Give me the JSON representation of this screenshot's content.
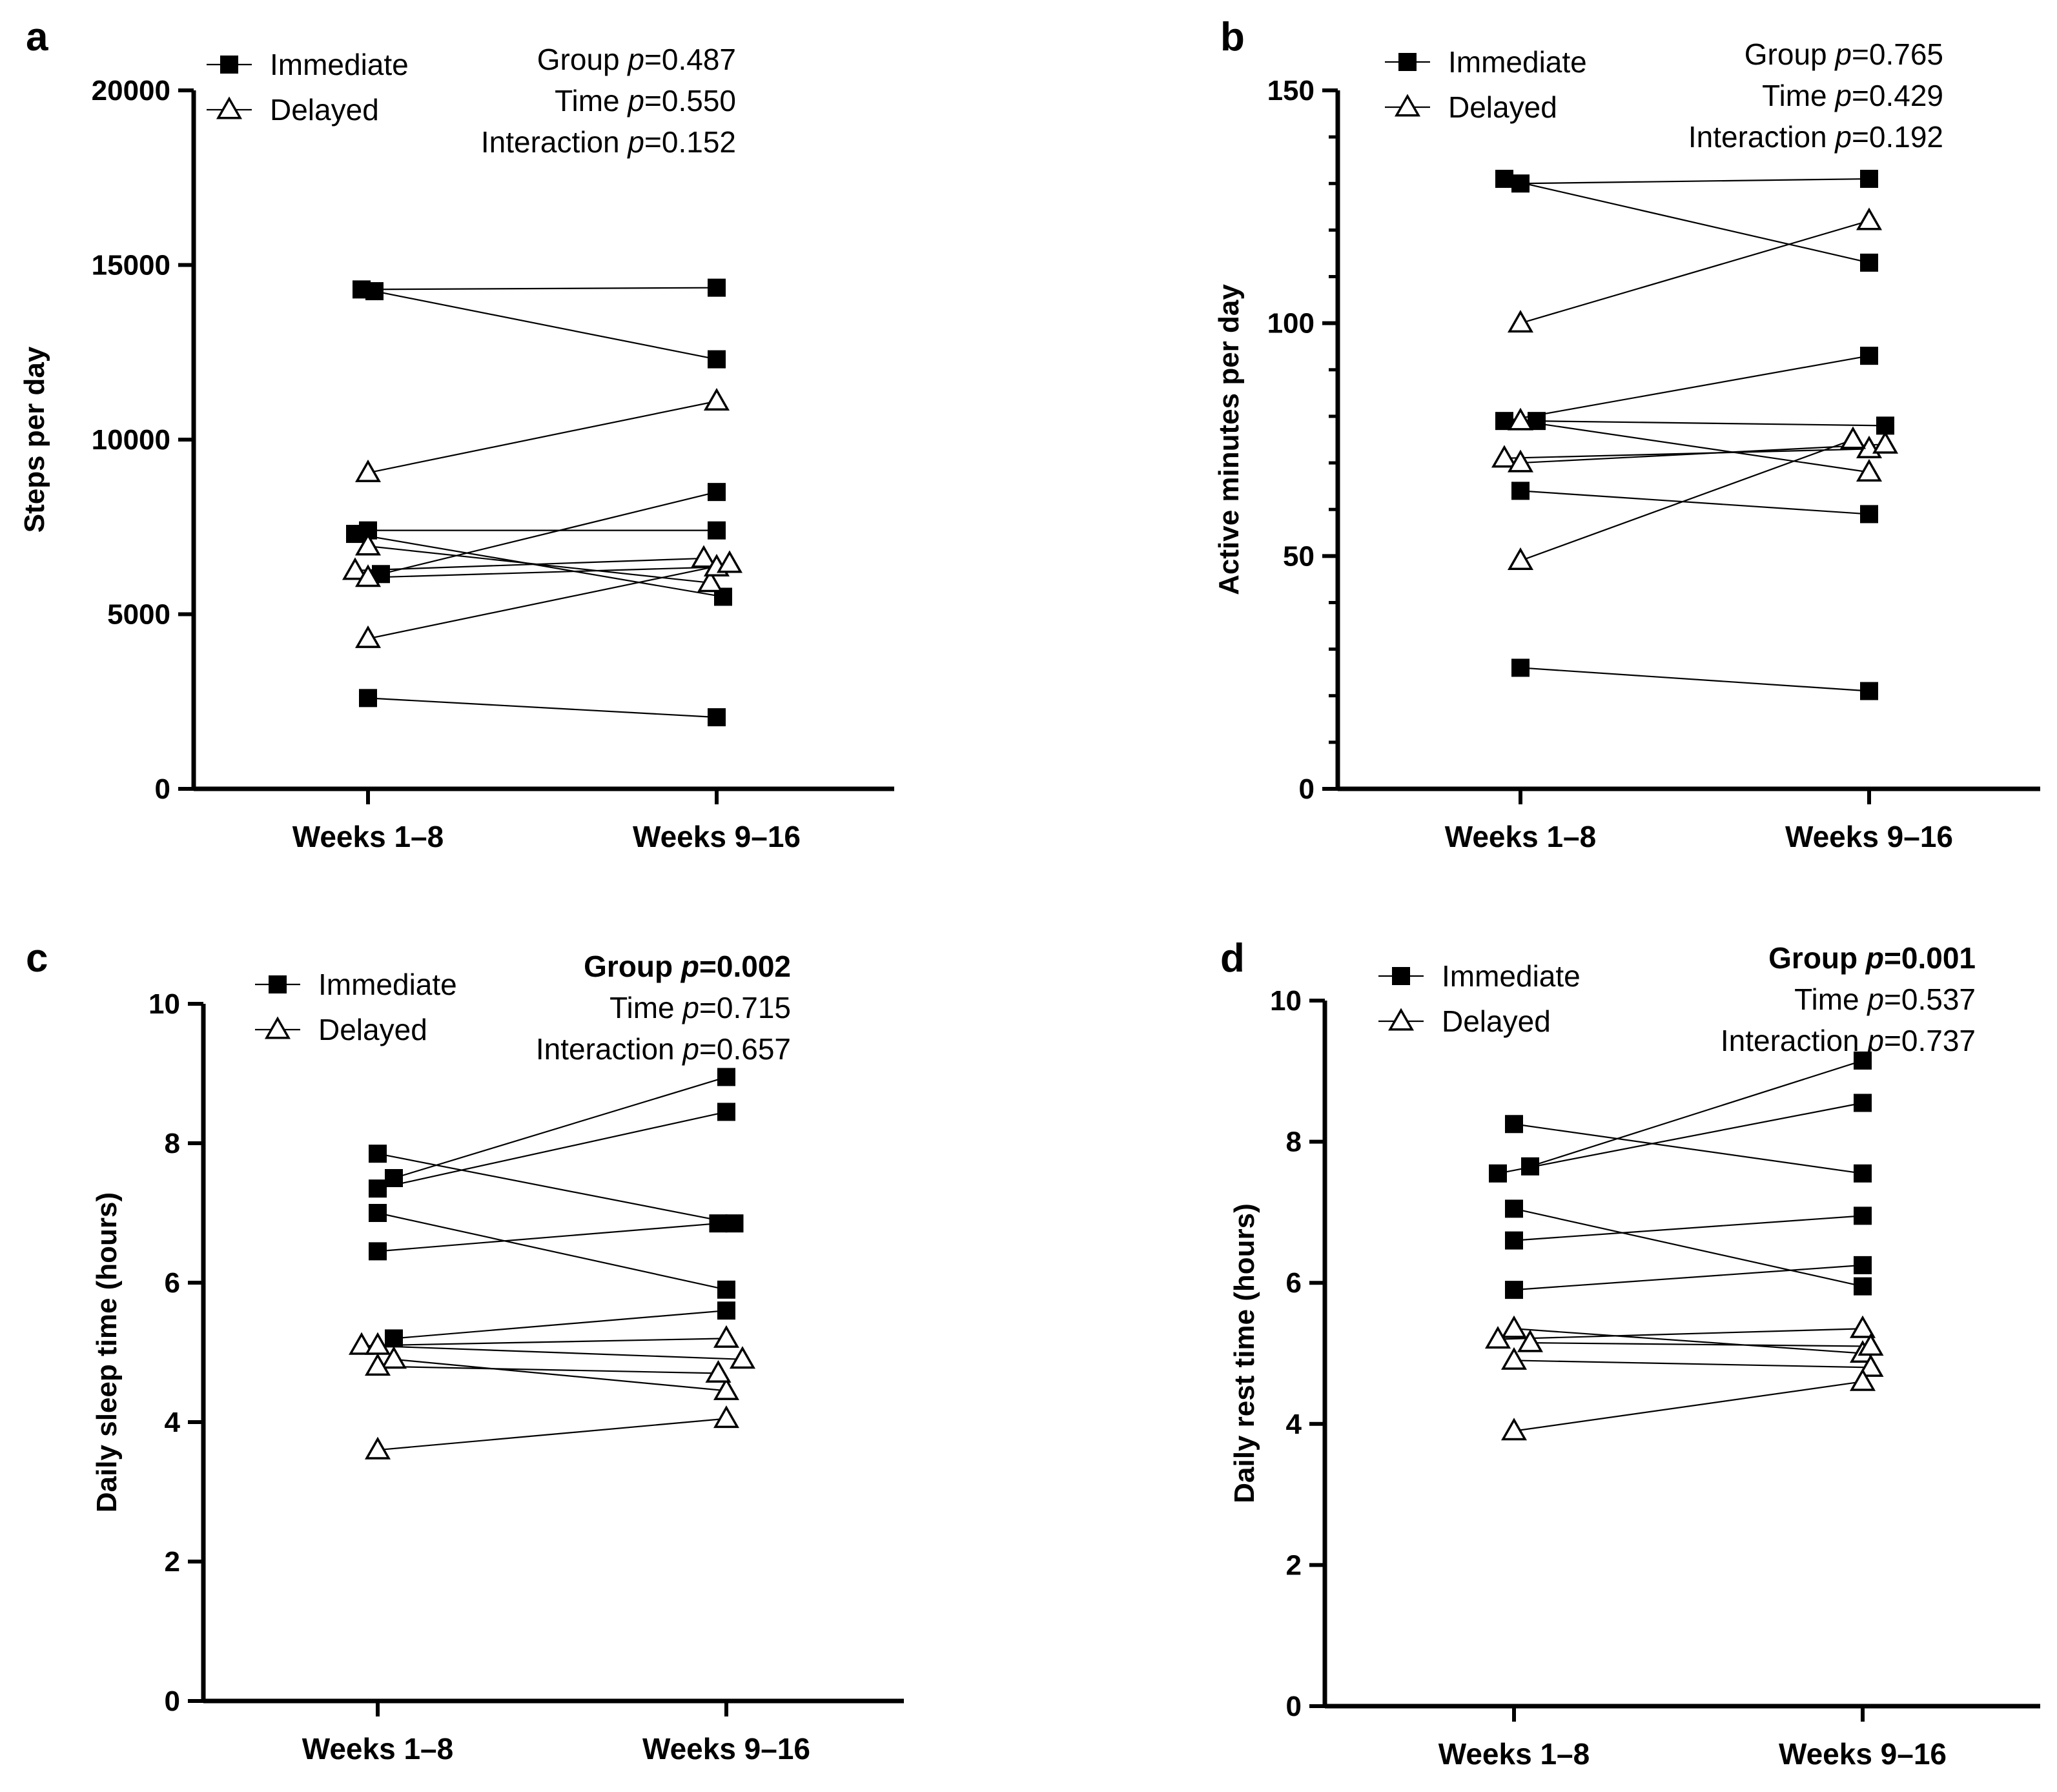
{
  "figure": {
    "panel_labels": [
      "a",
      "b",
      "c",
      "d"
    ],
    "legend": {
      "immediate": "Immediate",
      "delayed": "Delayed"
    }
  },
  "chart_data": [
    {
      "panel": "a",
      "type": "line",
      "title": "",
      "xlabel": "",
      "ylabel": "Steps per day",
      "categories": [
        "Weeks 1–8",
        "Weeks 9–16"
      ],
      "ylim": [
        0,
        20000
      ],
      "yticks": [
        0,
        5000,
        10000,
        15000,
        20000
      ],
      "ytick_labels": [
        "0",
        "5000",
        "10000",
        "15000",
        "20000"
      ],
      "minor_ticks": 0,
      "stats": [
        {
          "label": "Group",
          "p": "=0.487",
          "bold": false
        },
        {
          "label": "Time",
          "p": "=0.550",
          "bold": false
        },
        {
          "label": "Interaction",
          "p": "=0.152",
          "bold": false
        }
      ],
      "series": [
        {
          "name": "Immediate",
          "marker": "square",
          "values": [
            14300,
            14350
          ],
          "jitter": [
            -0.04,
            0
          ]
        },
        {
          "name": "Immediate",
          "marker": "square",
          "values": [
            14250,
            12300
          ],
          "jitter": [
            0.04,
            0
          ]
        },
        {
          "name": "Immediate",
          "marker": "square",
          "values": [
            7400,
            7400
          ],
          "jitter": [
            0,
            0
          ]
        },
        {
          "name": "Immediate",
          "marker": "square",
          "values": [
            6150,
            8500
          ],
          "jitter": [
            0.08,
            0
          ]
        },
        {
          "name": "Immediate",
          "marker": "square",
          "values": [
            7300,
            5500
          ],
          "jitter": [
            -0.08,
            0.04
          ]
        },
        {
          "name": "Immediate",
          "marker": "square",
          "values": [
            2600,
            2050
          ],
          "jitter": [
            0,
            0
          ]
        },
        {
          "name": "Delayed",
          "marker": "triangle",
          "values": [
            9050,
            11100
          ],
          "jitter": [
            0,
            0
          ]
        },
        {
          "name": "Delayed",
          "marker": "triangle",
          "values": [
            6950,
            5900
          ],
          "jitter": [
            0,
            -0.04
          ]
        },
        {
          "name": "Delayed",
          "marker": "triangle",
          "values": [
            6250,
            6600
          ],
          "jitter": [
            -0.08,
            -0.08
          ]
        },
        {
          "name": "Delayed",
          "marker": "triangle",
          "values": [
            6050,
            6350
          ],
          "jitter": [
            0,
            0
          ]
        },
        {
          "name": "Delayed",
          "marker": "triangle",
          "values": [
            4300,
            6450
          ],
          "jitter": [
            0,
            0.08
          ]
        }
      ]
    },
    {
      "panel": "b",
      "type": "line",
      "title": "",
      "xlabel": "",
      "ylabel": "Active minutes per day",
      "categories": [
        "Weeks 1–8",
        "Weeks 9–16"
      ],
      "ylim": [
        0,
        150
      ],
      "yticks": [
        0,
        50,
        100,
        150
      ],
      "ytick_labels": [
        "0",
        "50",
        "100",
        "150"
      ],
      "minor_ticks": 4,
      "stats": [
        {
          "label": "Group",
          "p": "=0.765",
          "bold": false
        },
        {
          "label": "Time",
          "p": "=0.429",
          "bold": false
        },
        {
          "label": "Interaction",
          "p": "=0.192",
          "bold": false
        }
      ],
      "series": [
        {
          "name": "Immediate",
          "marker": "square",
          "values": [
            131,
            113
          ],
          "jitter": [
            -0.1,
            0
          ]
        },
        {
          "name": "Immediate",
          "marker": "square",
          "values": [
            130,
            131
          ],
          "jitter": [
            0,
            0
          ]
        },
        {
          "name": "Immediate",
          "marker": "square",
          "values": [
            79,
            93
          ],
          "jitter": [
            -0.1,
            0
          ]
        },
        {
          "name": "Immediate",
          "marker": "square",
          "values": [
            79,
            78
          ],
          "jitter": [
            0.1,
            0.1
          ]
        },
        {
          "name": "Immediate",
          "marker": "square",
          "values": [
            64,
            59
          ],
          "jitter": [
            0,
            0
          ]
        },
        {
          "name": "Immediate",
          "marker": "square",
          "values": [
            26,
            21
          ],
          "jitter": [
            0,
            0
          ]
        },
        {
          "name": "Delayed",
          "marker": "triangle",
          "values": [
            100,
            122
          ],
          "jitter": [
            0,
            0
          ]
        },
        {
          "name": "Delayed",
          "marker": "triangle",
          "values": [
            79,
            68
          ],
          "jitter": [
            0,
            0
          ]
        },
        {
          "name": "Delayed",
          "marker": "triangle",
          "values": [
            71,
            73
          ],
          "jitter": [
            -0.1,
            0
          ]
        },
        {
          "name": "Delayed",
          "marker": "triangle",
          "values": [
            70,
            74
          ],
          "jitter": [
            0,
            0.1
          ]
        },
        {
          "name": "Delayed",
          "marker": "triangle",
          "values": [
            49,
            75
          ],
          "jitter": [
            0,
            -0.1
          ]
        }
      ]
    },
    {
      "panel": "c",
      "type": "line",
      "title": "",
      "xlabel": "",
      "ylabel": "Daily sleep time (hours)",
      "categories": [
        "Weeks 1–8",
        "Weeks 9–16"
      ],
      "ylim": [
        0,
        10
      ],
      "yticks": [
        0,
        2,
        4,
        6,
        8,
        10
      ],
      "ytick_labels": [
        "0",
        "2",
        "4",
        "6",
        "8",
        "10"
      ],
      "minor_ticks": 0,
      "stats": [
        {
          "label": "Group",
          "p": "=0.002",
          "bold": true
        },
        {
          "label": "Time",
          "p": "=0.715",
          "bold": false
        },
        {
          "label": "Interaction",
          "p": "=0.657",
          "bold": false
        }
      ],
      "series": [
        {
          "name": "Immediate",
          "marker": "square",
          "values": [
            7.85,
            6.85
          ],
          "jitter": [
            0,
            0.05
          ]
        },
        {
          "name": "Immediate",
          "marker": "square",
          "values": [
            7.5,
            8.95
          ],
          "jitter": [
            0.1,
            0
          ]
        },
        {
          "name": "Immediate",
          "marker": "square",
          "values": [
            7.35,
            8.45
          ],
          "jitter": [
            0,
            0
          ]
        },
        {
          "name": "Immediate",
          "marker": "square",
          "values": [
            7.0,
            5.9
          ],
          "jitter": [
            0,
            0
          ]
        },
        {
          "name": "Immediate",
          "marker": "square",
          "values": [
            6.45,
            6.85
          ],
          "jitter": [
            0,
            -0.05
          ]
        },
        {
          "name": "Immediate",
          "marker": "square",
          "values": [
            5.2,
            5.6
          ],
          "jitter": [
            0.1,
            0
          ]
        },
        {
          "name": "Delayed",
          "marker": "triangle",
          "values": [
            5.1,
            4.9
          ],
          "jitter": [
            -0.1,
            0.1
          ]
        },
        {
          "name": "Delayed",
          "marker": "triangle",
          "values": [
            5.1,
            5.2
          ],
          "jitter": [
            0,
            0
          ]
        },
        {
          "name": "Delayed",
          "marker": "triangle",
          "values": [
            4.9,
            4.45
          ],
          "jitter": [
            0.1,
            0
          ]
        },
        {
          "name": "Delayed",
          "marker": "triangle",
          "values": [
            4.8,
            4.7
          ],
          "jitter": [
            0,
            -0.05
          ]
        },
        {
          "name": "Delayed",
          "marker": "triangle",
          "values": [
            3.6,
            4.05
          ],
          "jitter": [
            0,
            0
          ]
        }
      ]
    },
    {
      "panel": "d",
      "type": "line",
      "title": "",
      "xlabel": "",
      "ylabel": "Daily rest time (hours)",
      "categories": [
        "Weeks 1–8",
        "Weeks 9–16"
      ],
      "ylim": [
        0,
        10
      ],
      "yticks": [
        0,
        2,
        4,
        6,
        8,
        10
      ],
      "ytick_labels": [
        "0",
        "2",
        "4",
        "6",
        "8",
        "10"
      ],
      "minor_ticks": 0,
      "stats": [
        {
          "label": "Group",
          "p": "=0.001",
          "bold": true
        },
        {
          "label": "Time",
          "p": "=0.537",
          "bold": false
        },
        {
          "label": "Interaction",
          "p": "=0.737",
          "bold": false
        }
      ],
      "series": [
        {
          "name": "Immediate",
          "marker": "square",
          "values": [
            8.25,
            7.55
          ],
          "jitter": [
            0,
            0
          ]
        },
        {
          "name": "Immediate",
          "marker": "square",
          "values": [
            7.65,
            9.15
          ],
          "jitter": [
            0.1,
            0
          ]
        },
        {
          "name": "Immediate",
          "marker": "square",
          "values": [
            7.55,
            8.55
          ],
          "jitter": [
            -0.1,
            0
          ]
        },
        {
          "name": "Immediate",
          "marker": "square",
          "values": [
            7.05,
            5.95
          ],
          "jitter": [
            0,
            0
          ]
        },
        {
          "name": "Immediate",
          "marker": "square",
          "values": [
            6.6,
            6.95
          ],
          "jitter": [
            0,
            0
          ]
        },
        {
          "name": "Immediate",
          "marker": "square",
          "values": [
            5.9,
            6.25
          ],
          "jitter": [
            0,
            0
          ]
        },
        {
          "name": "Delayed",
          "marker": "triangle",
          "values": [
            5.35,
            5.0
          ],
          "jitter": [
            0,
            0
          ]
        },
        {
          "name": "Delayed",
          "marker": "triangle",
          "values": [
            5.2,
            5.35
          ],
          "jitter": [
            -0.1,
            0
          ]
        },
        {
          "name": "Delayed",
          "marker": "triangle",
          "values": [
            5.15,
            5.1
          ],
          "jitter": [
            0.1,
            0.05
          ]
        },
        {
          "name": "Delayed",
          "marker": "triangle",
          "values": [
            4.9,
            4.8
          ],
          "jitter": [
            0,
            0.05
          ]
        },
        {
          "name": "Delayed",
          "marker": "triangle",
          "values": [
            3.9,
            4.6
          ],
          "jitter": [
            0,
            0
          ]
        }
      ]
    }
  ]
}
